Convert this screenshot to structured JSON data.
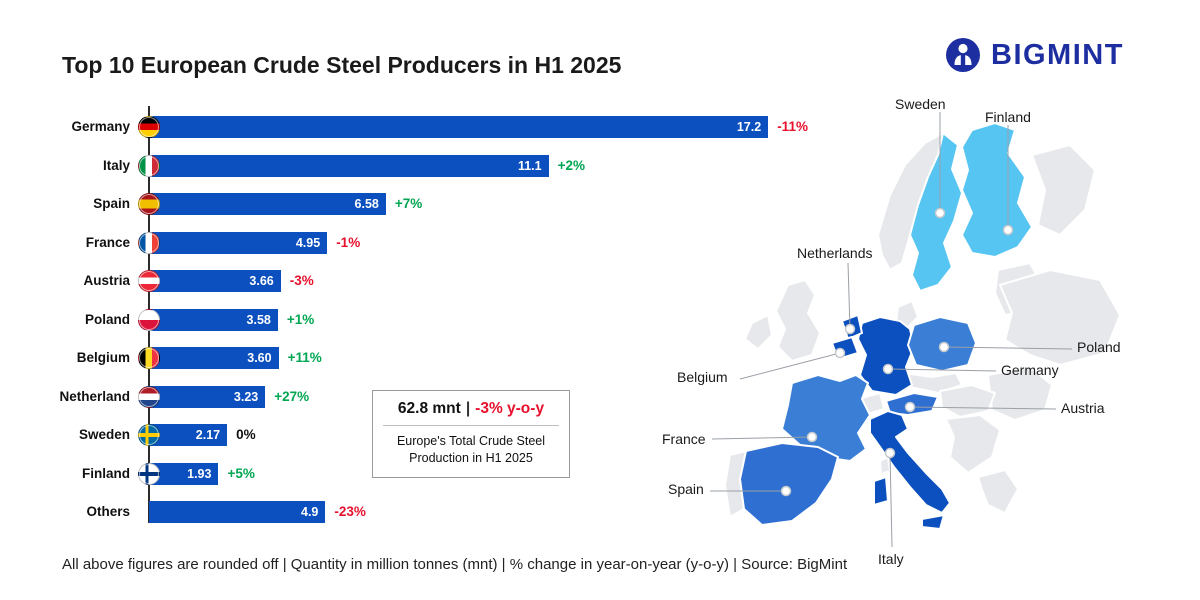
{
  "header": {
    "title": "Top 10 European Crude Steel Producers in H1 2025",
    "brand": "BIGMINT"
  },
  "chart_data": {
    "type": "bar",
    "orientation": "horizontal",
    "title": "Top 10 European Crude Steel Producers in H1 2025",
    "unit": "million tonnes (mnt)",
    "xlim": [
      0,
      18
    ],
    "categories": [
      "Germany",
      "Italy",
      "Spain",
      "France",
      "Austria",
      "Poland",
      "Belgium",
      "Netherland",
      "Sweden",
      "Finland",
      "Others"
    ],
    "values": [
      17.2,
      11.1,
      6.58,
      4.95,
      3.66,
      3.58,
      3.6,
      3.23,
      2.17,
      1.93,
      4.9
    ],
    "value_labels": [
      "17.2",
      "11.1",
      "6.58",
      "4.95",
      "3.66",
      "3.58",
      "3.60",
      "3.23",
      "2.17",
      "1.93",
      "4.9"
    ],
    "yoy_change": [
      "-11%",
      "+2%",
      "+7%",
      "-1%",
      "-3%",
      "+1%",
      "+11%",
      "+27%",
      "0%",
      "+5%",
      "-23%"
    ],
    "flags": [
      "de",
      "it",
      "es",
      "fr",
      "at",
      "pl",
      "be",
      "nl",
      "se",
      "fi",
      null
    ]
  },
  "summary": {
    "total": "62.8 mnt",
    "divider": "|",
    "change": "-3% y-o-y",
    "caption": "Europe's Total Crude Steel Production in H1 2025"
  },
  "map": {
    "labels": {
      "sweden": "Sweden",
      "finland": "Finland",
      "netherlands": "Netherlands",
      "belgium": "Belgium",
      "poland": "Poland",
      "germany": "Germany",
      "austria": "Austria",
      "france": "France",
      "spain": "Spain",
      "italy": "Italy"
    }
  },
  "footer": {
    "note": "All above figures are rounded off  |  Quantity in million tonnes (mnt)  |  % change in year-on-year (y-o-y)  |  Source: BigMint"
  },
  "colors": {
    "bar": "#0B50BE",
    "positive": "#00A651",
    "negative": "#E8112D",
    "nordic": "#56C5F2",
    "mid_blue": "#3A7FD5",
    "mid2_blue": "#2F6FD2",
    "accent": "#1D2FA0"
  }
}
